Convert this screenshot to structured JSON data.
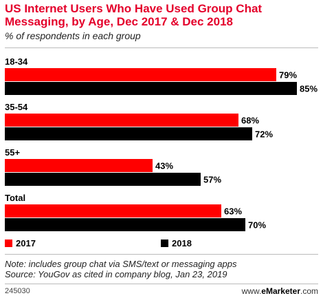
{
  "chart_data": {
    "type": "bar",
    "orientation": "horizontal",
    "title": "US Internet Users Who Have Used Group Chat Messaging, by Age, Dec 2017 & Dec 2018",
    "subtitle": "% of respondents in each group",
    "categories": [
      "18-34",
      "35-54",
      "55+",
      "Total"
    ],
    "series": [
      {
        "name": "2017",
        "color": "#ff0000",
        "values": [
          79,
          68,
          43,
          63
        ]
      },
      {
        "name": "2018",
        "color": "#000000",
        "values": [
          85,
          72,
          57,
          70
        ]
      }
    ],
    "value_suffix": "%",
    "xlim": [
      0,
      100
    ],
    "grid": false,
    "legend": "bottom"
  },
  "note": "Note: includes group chat via SMS/text or messaging apps",
  "source": "Source: YouGov as cited in company blog, Jan 23, 2019",
  "footer": {
    "chart_id": "245030",
    "site_prefix": "www.",
    "site_brand": "eMarketer",
    "site_suffix": ".com"
  }
}
